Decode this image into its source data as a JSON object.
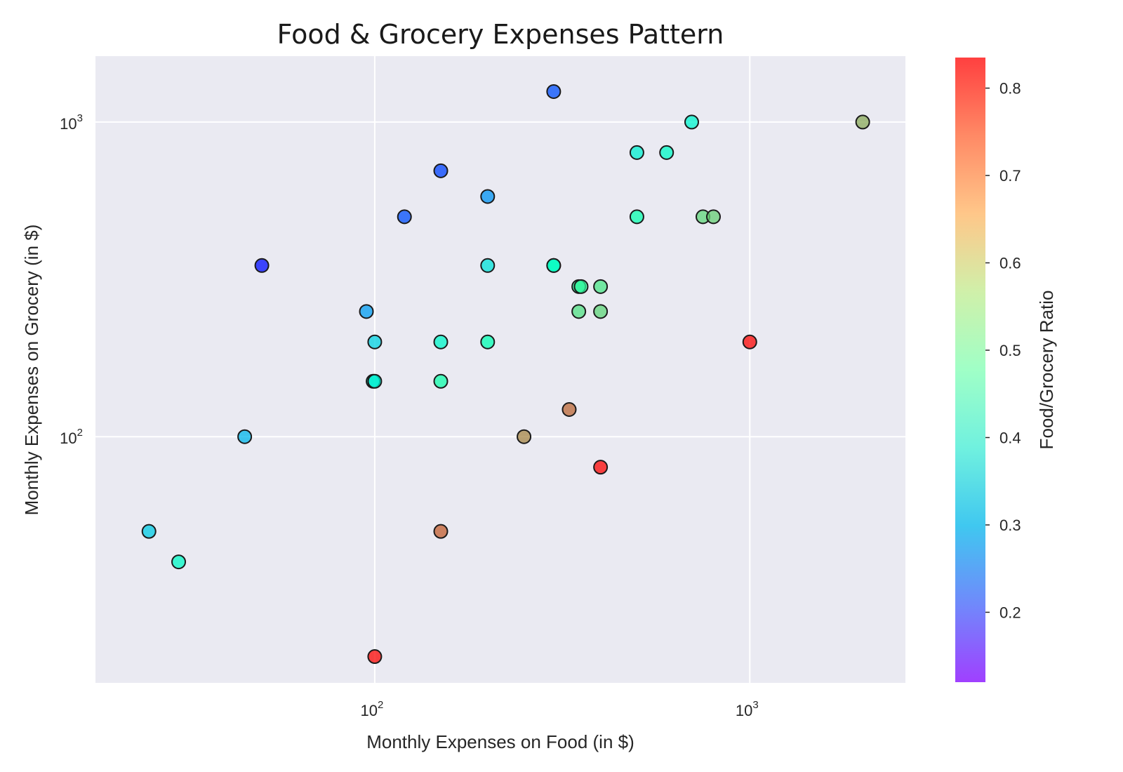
{
  "chart_data": {
    "type": "scatter",
    "title": "Food & Grocery Expenses Pattern",
    "xlabel": "Monthly Expenses on Food (in $)",
    "ylabel": "Monthly Expenses on Grocery (in $)",
    "xscale": "log",
    "yscale": "log",
    "xlim": [
      18,
      2600
    ],
    "ylim": [
      16.5,
      1620
    ],
    "x_ticks": [
      {
        "base": "10",
        "exp": "2",
        "value": 100
      },
      {
        "base": "10",
        "exp": "3",
        "value": 1000
      }
    ],
    "y_ticks": [
      {
        "base": "10",
        "exp": "2",
        "value": 100
      },
      {
        "base": "10",
        "exp": "3",
        "value": 1000
      }
    ],
    "grid": true,
    "background": "#eaeaf2",
    "colormap": "rainbow",
    "colorbar": {
      "label": "Food/Grocery Ratio",
      "range": [
        0.12,
        0.835
      ],
      "ticks": [
        "0.2",
        "0.3",
        "0.4",
        "0.5",
        "0.6",
        "0.7",
        "0.8"
      ]
    },
    "points": [
      {
        "x": 300,
        "y": 1250,
        "c": 0.19
      },
      {
        "x": 700,
        "y": 1000,
        "c": 0.41
      },
      {
        "x": 2000,
        "y": 1000,
        "c": 0.67
      },
      {
        "x": 500,
        "y": 800,
        "c": 0.4
      },
      {
        "x": 600,
        "y": 800,
        "c": 0.43
      },
      {
        "x": 150,
        "y": 700,
        "c": 0.18
      },
      {
        "x": 200,
        "y": 580,
        "c": 0.26
      },
      {
        "x": 120,
        "y": 500,
        "c": 0.19
      },
      {
        "x": 500,
        "y": 500,
        "c": 0.49
      },
      {
        "x": 750,
        "y": 500,
        "c": 0.61
      },
      {
        "x": 800,
        "y": 500,
        "c": 0.62
      },
      {
        "x": 50,
        "y": 350,
        "c": 0.13
      },
      {
        "x": 200,
        "y": 350,
        "c": 0.37
      },
      {
        "x": 300,
        "y": 350,
        "c": 0.43
      },
      {
        "x": 300,
        "y": 350,
        "c": 0.45
      },
      {
        "x": 350,
        "y": 300,
        "c": 0.53
      },
      {
        "x": 355,
        "y": 300,
        "c": 0.54
      },
      {
        "x": 400,
        "y": 300,
        "c": 0.58
      },
      {
        "x": 95,
        "y": 250,
        "c": 0.27
      },
      {
        "x": 350,
        "y": 250,
        "c": 0.59
      },
      {
        "x": 400,
        "y": 250,
        "c": 0.61
      },
      {
        "x": 100,
        "y": 200,
        "c": 0.34
      },
      {
        "x": 150,
        "y": 200,
        "c": 0.42
      },
      {
        "x": 200,
        "y": 200,
        "c": 0.48
      },
      {
        "x": 1000,
        "y": 200,
        "c": 0.83
      },
      {
        "x": 99,
        "y": 150,
        "c": 0.39
      },
      {
        "x": 100,
        "y": 150,
        "c": 0.4
      },
      {
        "x": 150,
        "y": 150,
        "c": 0.5
      },
      {
        "x": 330,
        "y": 122,
        "c": 0.74
      },
      {
        "x": 250,
        "y": 100,
        "c": 0.71
      },
      {
        "x": 45,
        "y": 100,
        "c": 0.3
      },
      {
        "x": 400,
        "y": 80,
        "c": 0.83
      },
      {
        "x": 25,
        "y": 50,
        "c": 0.33
      },
      {
        "x": 150,
        "y": 50,
        "c": 0.75
      },
      {
        "x": 30,
        "y": 40,
        "c": 0.43
      },
      {
        "x": 100,
        "y": 20,
        "c": 0.83
      }
    ]
  }
}
